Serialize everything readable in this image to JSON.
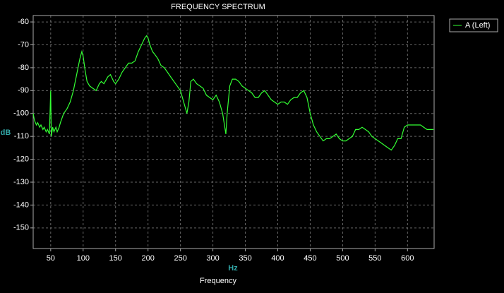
{
  "chart_data": {
    "type": "line",
    "title": "FREQUENCY SPECTRUM",
    "x_label": "Hz",
    "y_label": "dB",
    "footer": "Frequency",
    "x": [
      23,
      25,
      28,
      30,
      33,
      35,
      38,
      40,
      43,
      45,
      48,
      50,
      51,
      53,
      55,
      58,
      60,
      63,
      65,
      70,
      75,
      80,
      85,
      90,
      95,
      98,
      100,
      103,
      106,
      110,
      115,
      120,
      125,
      128,
      132,
      138,
      142,
      147,
      150,
      155,
      160,
      165,
      170,
      175,
      180,
      185,
      190,
      195,
      198,
      200,
      203,
      207,
      210,
      215,
      220,
      225,
      230,
      235,
      240,
      245,
      250,
      255,
      260,
      263,
      266,
      270,
      275,
      280,
      285,
      290,
      295,
      300,
      305,
      310,
      315,
      320,
      322,
      326,
      330,
      335,
      340,
      345,
      350,
      355,
      360,
      365,
      370,
      375,
      380,
      385,
      390,
      395,
      400,
      405,
      410,
      415,
      420,
      425,
      430,
      435,
      440,
      445,
      450,
      455,
      460,
      465,
      470,
      475,
      480,
      485,
      490,
      495,
      500,
      505,
      510,
      515,
      520,
      525,
      530,
      535,
      540,
      545,
      550,
      555,
      560,
      565,
      570,
      575,
      580,
      585,
      590,
      595,
      600,
      605,
      610,
      615,
      620,
      625,
      630,
      635,
      640
    ],
    "series": [
      {
        "name": "A (Left)",
        "color": "#33ff33",
        "values": [
          -100,
          -103,
          -105,
          -104,
          -106,
          -105,
          -107,
          -106,
          -108,
          -107,
          -109,
          -90,
          -110,
          -106,
          -108,
          -106,
          -108,
          -106,
          -104,
          -100,
          -98,
          -95,
          -90,
          -83,
          -76,
          -73,
          -75,
          -81,
          -86,
          -88,
          -89,
          -90,
          -87,
          -86,
          -87,
          -84,
          -83,
          -86,
          -87,
          -85,
          -82,
          -80,
          -78,
          -78,
          -77,
          -73,
          -70,
          -67,
          -66,
          -67,
          -70,
          -73,
          -74,
          -76,
          -79,
          -80,
          -82,
          -84,
          -86,
          -88,
          -90,
          -95,
          -100,
          -95,
          -86,
          -85,
          -87,
          -88,
          -89,
          -92,
          -93,
          -94,
          -92,
          -95,
          -100,
          -109,
          -100,
          -88,
          -85,
          -85,
          -86,
          -88,
          -89,
          -90,
          -91,
          -93,
          -93,
          -91,
          -90,
          -92,
          -94,
          -95,
          -96,
          -95,
          -95,
          -96,
          -94,
          -93,
          -93,
          -91,
          -90,
          -93,
          -100,
          -105,
          -108,
          -110,
          -112,
          -111,
          -111,
          -110,
          -109,
          -111,
          -112,
          -112,
          -111,
          -110,
          -107,
          -107,
          -106,
          -107,
          -108,
          -110,
          -111,
          -112,
          -113,
          -114,
          -115,
          -116,
          -114,
          -111,
          -111,
          -106,
          -105,
          -105,
          -105,
          -105,
          -105,
          -106,
          -107,
          -107,
          -107
        ]
      }
    ],
    "xlim": [
      23,
      641
    ],
    "ylim": [
      -159,
      -57.2
    ],
    "xticks": [
      50,
      100,
      150,
      200,
      250,
      300,
      350,
      400,
      450,
      500,
      550,
      600
    ],
    "yticks": [
      -60,
      -70,
      -80,
      -90,
      -100,
      -110,
      -120,
      -130,
      -140,
      -150
    ],
    "grid": true,
    "legend": "top-right"
  }
}
